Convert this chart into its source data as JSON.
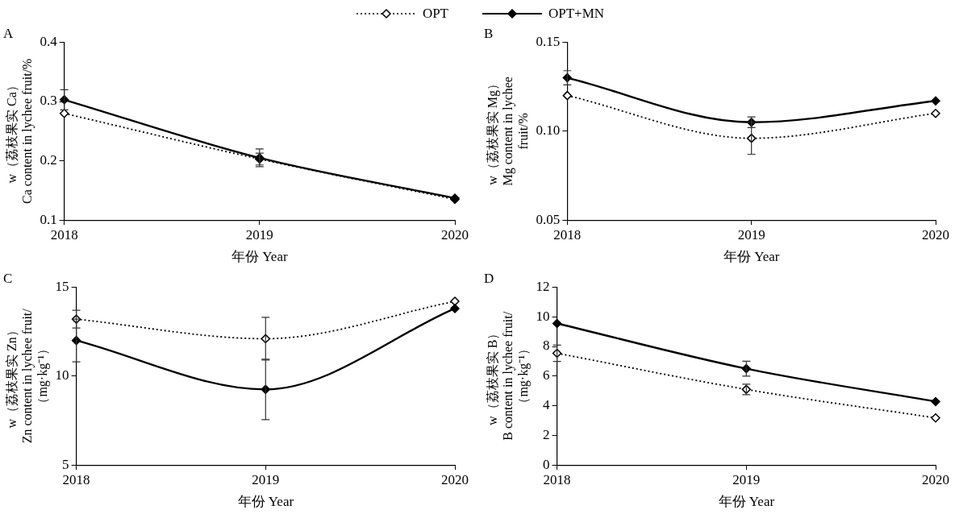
{
  "chart_data": [
    {
      "type": "line",
      "title": "A",
      "xlabel": "年份 Year",
      "ylabel": "w（荔枝果实 Ca）\nCa content in lychee fruit/%",
      "categories": [
        "2018",
        "2019",
        "2020"
      ],
      "ylim": [
        0.1,
        0.4
      ],
      "yticks": [
        0.1,
        0.2,
        0.3,
        0.4
      ],
      "grid": false,
      "legend": "top",
      "marker": "diamond",
      "series": [
        {
          "name": "OPT",
          "color": "#000000",
          "line_style": "dotted",
          "values": [
            0.28,
            0.203,
            0.135
          ],
          "errors": [
            null,
            0.01,
            null
          ]
        },
        {
          "name": "OPT+MN",
          "color": "#000000",
          "line_style": "solid",
          "values": [
            0.303,
            0.205,
            0.137
          ],
          "errors": [
            0.017,
            0.015,
            null
          ]
        }
      ]
    },
    {
      "type": "line",
      "title": "B",
      "xlabel": "年份 Year",
      "ylabel": "w（荔枝果实 Mg）\nMg content in lychee\nfruit/%",
      "categories": [
        "2018",
        "2019",
        "2020"
      ],
      "ylim": [
        0.05,
        0.15
      ],
      "yticks": [
        {
          "value": 0.05,
          "label": "0.05"
        },
        {
          "value": 0.1,
          "label": "0.10"
        },
        {
          "value": 0.15,
          "label": "0.15"
        }
      ],
      "grid": false,
      "legend": false,
      "marker": "diamond",
      "series": [
        {
          "color": "#000000",
          "line_style": "dotted",
          "values": [
            0.12,
            0.096,
            0.11
          ],
          "errors": [
            null,
            0.009,
            null
          ]
        },
        {
          "color": "#000000",
          "line_style": "solid",
          "values": [
            0.13,
            0.105,
            0.117
          ],
          "errors": [
            0.004,
            0.003,
            null
          ]
        }
      ]
    },
    {
      "type": "line",
      "title": "C",
      "xlabel": "年份 Year",
      "ylabel": "w（荔枝果实 Zn）\nZn content in lychee fruit/\n（mg·kg⁻¹）",
      "categories": [
        "2018",
        "2019",
        "2020"
      ],
      "ylim": [
        5,
        15
      ],
      "yticks": [
        5,
        10,
        15
      ],
      "grid": false,
      "legend": false,
      "marker": "diamond",
      "series": [
        {
          "color": "#000000",
          "line_style": "dotted",
          "values": [
            13.2,
            12.1,
            14.2
          ],
          "errors": [
            0.5,
            1.2,
            null
          ]
        },
        {
          "color": "#000000",
          "line_style": "solid",
          "values": [
            12.0,
            9.25,
            13.8
          ],
          "errors": [
            1.2,
            1.7,
            null
          ]
        }
      ]
    },
    {
      "type": "line",
      "title": "D",
      "xlabel": "年份 Year",
      "ylabel": "w（荔枝果实 B）\nB content in lychee fruit/\n（mg·kg⁻¹）",
      "categories": [
        "2018",
        "2019",
        "2020"
      ],
      "ylim": [
        0,
        12
      ],
      "yticks": [
        0,
        2,
        4,
        6,
        8,
        10,
        12
      ],
      "grid": false,
      "legend": false,
      "marker": "diamond",
      "series": [
        {
          "color": "#000000",
          "line_style": "dotted",
          "values": [
            7.54,
            5.1,
            3.18
          ],
          "errors": [
            0.55,
            0.35,
            null
          ]
        },
        {
          "color": "#000000",
          "line_style": "solid",
          "values": [
            9.55,
            6.5,
            4.28
          ],
          "errors": [
            null,
            0.5,
            null
          ]
        }
      ]
    }
  ]
}
